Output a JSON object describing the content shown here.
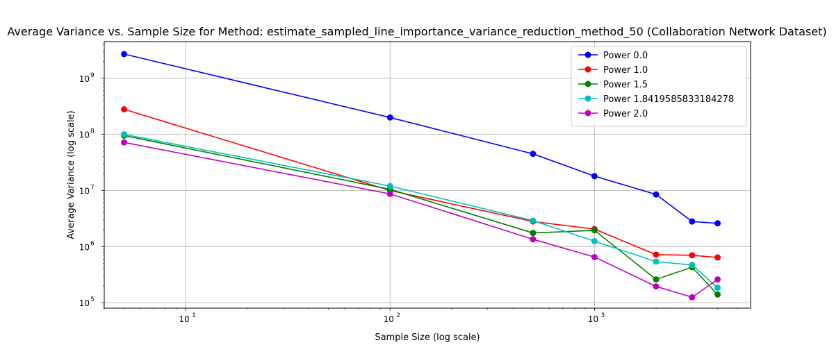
{
  "chart_data": {
    "type": "line",
    "title": "Average Variance vs. Sample Size for Method: estimate_sampled_line_importance_variance_reduction_method_50 (Collaboration Network Dataset)",
    "xlabel": "Sample Size (log scale)",
    "ylabel": "Average Variance (log scale)",
    "xscale": "log",
    "yscale": "log",
    "xlim": [
      4,
      5800
    ],
    "ylim": [
      80000,
      4500000000
    ],
    "grid": true,
    "legend_position": "top-right",
    "x": [
      5,
      100,
      500,
      1000,
      2000,
      3000,
      4000
    ],
    "x_ticks": [
      {
        "value": 10,
        "base": "10",
        "exp": "1"
      },
      {
        "value": 100,
        "base": "10",
        "exp": "2"
      },
      {
        "value": 1000,
        "base": "10",
        "exp": "3"
      }
    ],
    "y_ticks": [
      {
        "value": 100000,
        "base": "10",
        "exp": "5"
      },
      {
        "value": 1000000,
        "base": "10",
        "exp": "6"
      },
      {
        "value": 10000000,
        "base": "10",
        "exp": "7"
      },
      {
        "value": 100000000,
        "base": "10",
        "exp": "8"
      },
      {
        "value": 1000000000,
        "base": "10",
        "exp": "9"
      }
    ],
    "series": [
      {
        "name": "Power 0.0",
        "color": "#0000ff",
        "values": [
          2700000000,
          200000000,
          45000000,
          18000000,
          8500000,
          2800000,
          2600000
        ]
      },
      {
        "name": "Power 1.0",
        "color": "#ff0000",
        "values": [
          280000000,
          10000000,
          2800000,
          2050000,
          720000,
          700000,
          640000
        ]
      },
      {
        "name": "Power 1.5",
        "color": "#008000",
        "values": [
          95000000,
          10500000,
          1750000,
          1950000,
          260000,
          430000,
          140000
        ]
      },
      {
        "name": "Power 1.8419585833184278",
        "color": "#00bfbf",
        "values": [
          100000000,
          12000000,
          2900000,
          1250000,
          540000,
          470000,
          185000
        ]
      },
      {
        "name": "Power 2.0",
        "color": "#bf00bf",
        "values": [
          72000000,
          8700000,
          1350000,
          650000,
          195000,
          125000,
          260000
        ]
      }
    ]
  }
}
